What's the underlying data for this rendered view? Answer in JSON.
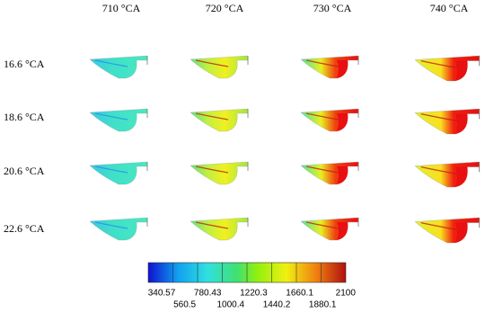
{
  "columns": [
    "710 °CA",
    "720 °CA",
    "730 °CA",
    "740 °CA"
  ],
  "rows": [
    "16.6 °CA",
    "18.6 °CA",
    "20.6 °CA",
    "22.6 °CA"
  ],
  "colorbar": {
    "labels": [
      "340.57",
      "560.5",
      "780.43",
      "1000.4",
      "1220.3",
      "1440.2",
      "1660.1",
      "1880.1",
      "2100"
    ]
  }
}
